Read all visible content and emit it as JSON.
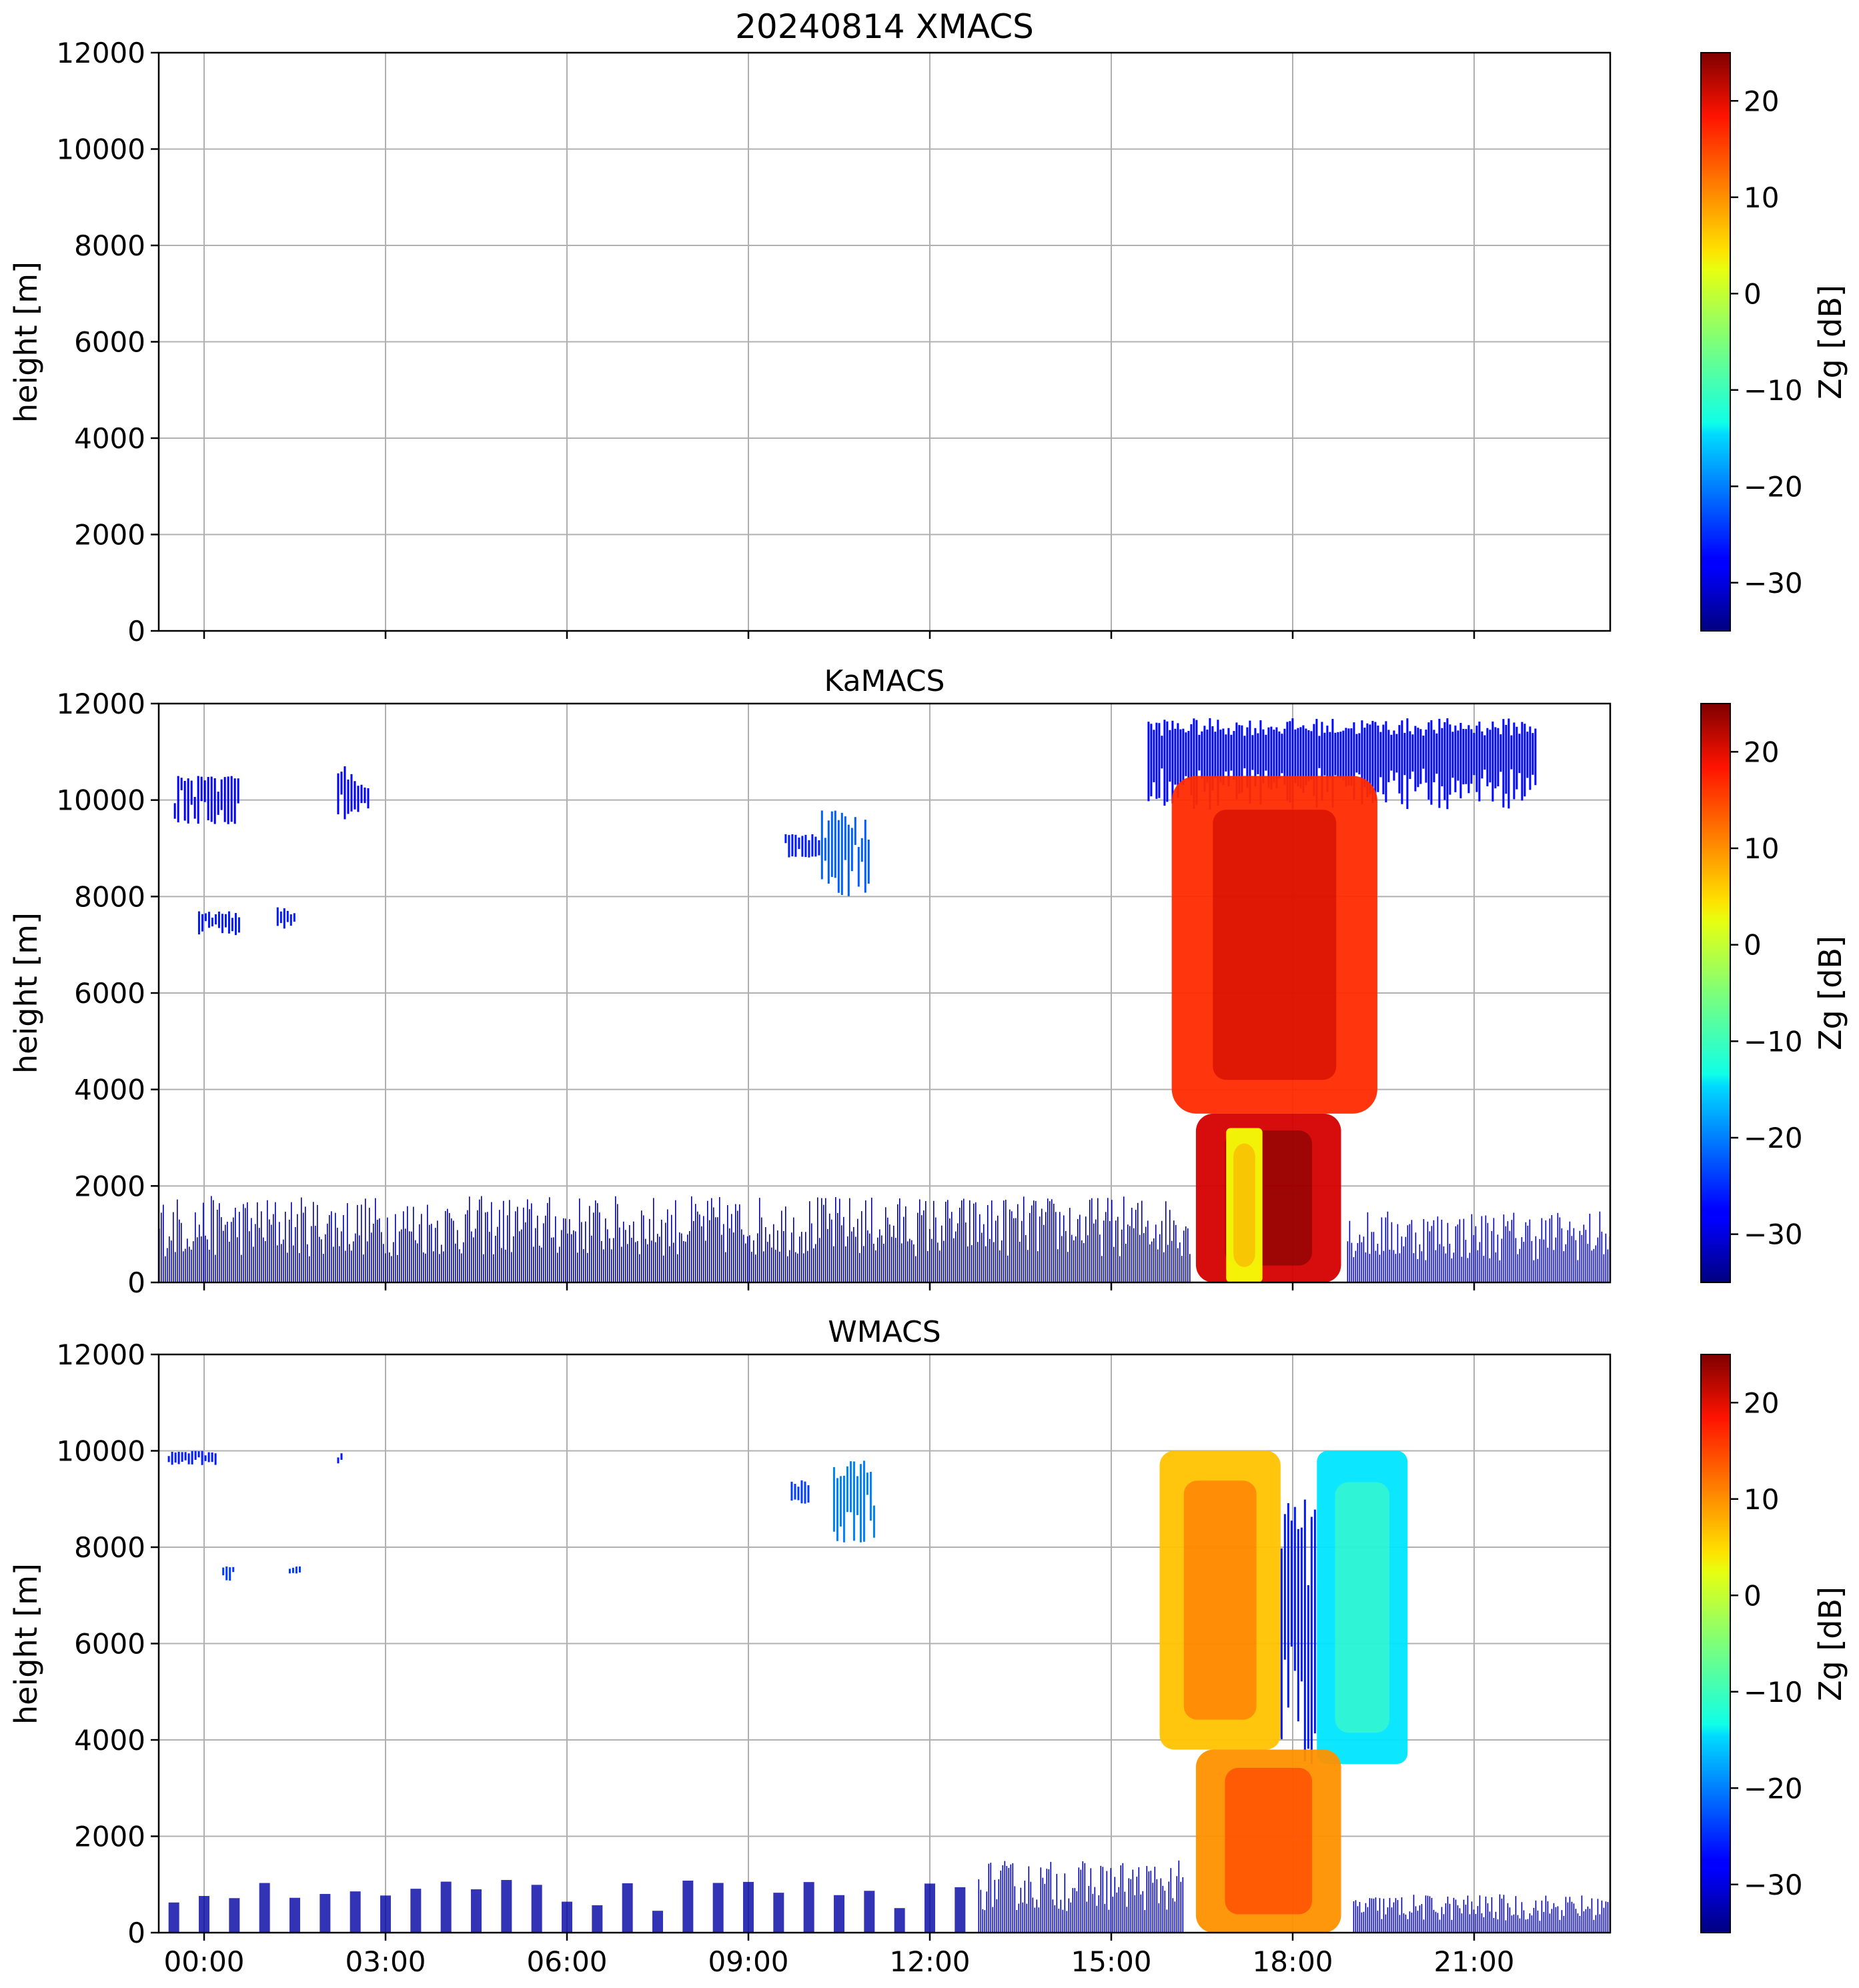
{
  "figure": {
    "x_tick_labels": [
      "00:00",
      "03:00",
      "06:00",
      "09:00",
      "12:00",
      "15:00",
      "18:00",
      "21:00"
    ]
  },
  "chart_data": [
    {
      "type": "heatmap",
      "title": "20240814 XMACS",
      "xlabel": "",
      "ylabel": "height [m]",
      "x_unit": "hours UTC",
      "xlim": [
        -0.75,
        23.25
      ],
      "ylim": [
        0,
        12000
      ],
      "y_ticks": [
        0,
        2000,
        4000,
        6000,
        8000,
        10000,
        12000
      ],
      "x_tick_labels_shown": false,
      "grid": true,
      "colorbar": {
        "label": "Zg [dB]",
        "range": [
          -35,
          25
        ],
        "ticks": [
          -30,
          -20,
          -10,
          0,
          10,
          20
        ],
        "colormap": "jet"
      },
      "echoes": []
    },
    {
      "type": "heatmap",
      "title": "KaMACS",
      "xlabel": "",
      "ylabel": "height [m]",
      "x_unit": "hours UTC",
      "xlim": [
        -0.75,
        23.25
      ],
      "ylim": [
        0,
        12000
      ],
      "y_ticks": [
        0,
        2000,
        4000,
        6000,
        8000,
        10000,
        12000
      ],
      "x_tick_labels_shown": false,
      "grid": true,
      "colorbar": {
        "label": "Zg [dB]",
        "range": [
          -35,
          25
        ],
        "ticks": [
          -30,
          -20,
          -10,
          0,
          10,
          20
        ],
        "colormap": "jet"
      },
      "echoes": [
        {
          "t0": -0.5,
          "t1": 0.6,
          "h0": 9500,
          "h1": 10500,
          "z": -28,
          "pattern": "streaks"
        },
        {
          "t0": 2.2,
          "t1": 2.7,
          "h0": 9600,
          "h1": 10700,
          "z": -28,
          "pattern": "streaks"
        },
        {
          "t0": -0.1,
          "t1": 0.6,
          "h0": 7200,
          "h1": 7700,
          "z": -26,
          "pattern": "streaks"
        },
        {
          "t0": 1.2,
          "t1": 1.5,
          "h0": 7300,
          "h1": 7800,
          "z": -26,
          "pattern": "streaks"
        },
        {
          "t0": 10.2,
          "t1": 11.0,
          "h0": 8000,
          "h1": 9800,
          "z": -22,
          "pattern": "streaks"
        },
        {
          "t0": 9.6,
          "t1": 10.2,
          "h0": 8800,
          "h1": 9300,
          "z": -26,
          "pattern": "streaks"
        },
        {
          "t0": -0.75,
          "t1": 16.3,
          "h0": 0,
          "h1": 1800,
          "z": -32,
          "pattern": "noise"
        },
        {
          "t0": 18.9,
          "t1": 23.25,
          "h0": 0,
          "h1": 1500,
          "z": -32,
          "pattern": "noise"
        },
        {
          "t0": 15.6,
          "t1": 22.0,
          "h0": 9800,
          "h1": 11700,
          "z": -27,
          "pattern": "anvil"
        },
        {
          "t0": 16.0,
          "t1": 19.4,
          "h0": 3500,
          "h1": 10500,
          "z": 15,
          "pattern": "core"
        },
        {
          "t0": 16.4,
          "t1": 18.8,
          "h0": 0,
          "h1": 3500,
          "z": 20,
          "pattern": "core"
        },
        {
          "t0": 16.9,
          "t1": 17.5,
          "h0": 0,
          "h1": 3200,
          "z": 2,
          "pattern": "core"
        }
      ]
    },
    {
      "type": "heatmap",
      "title": "WMACS",
      "xlabel": "",
      "ylabel": "height [m]",
      "x_unit": "hours UTC",
      "xlim": [
        -0.75,
        23.25
      ],
      "ylim": [
        0,
        12000
      ],
      "y_ticks": [
        0,
        2000,
        4000,
        6000,
        8000,
        10000,
        12000
      ],
      "x_tick_labels_shown": true,
      "grid": true,
      "colorbar": {
        "label": "Zg [dB]",
        "range": [
          -35,
          25
        ],
        "ticks": [
          -30,
          -20,
          -10,
          0,
          10,
          20
        ],
        "colormap": "jet"
      },
      "echoes": [
        {
          "t0": -0.6,
          "t1": 0.2,
          "h0": 9700,
          "h1": 10000,
          "z": -26,
          "pattern": "streaks"
        },
        {
          "t0": 2.2,
          "t1": 2.3,
          "h0": 9700,
          "h1": 10000,
          "z": -26,
          "pattern": "streaks"
        },
        {
          "t0": 0.3,
          "t1": 0.5,
          "h0": 7300,
          "h1": 7600,
          "z": -24,
          "pattern": "streaks"
        },
        {
          "t0": 1.4,
          "t1": 1.6,
          "h0": 7400,
          "h1": 7600,
          "z": -24,
          "pattern": "streaks"
        },
        {
          "t0": 9.7,
          "t1": 10.0,
          "h0": 8900,
          "h1": 9400,
          "z": -24,
          "pattern": "streaks"
        },
        {
          "t0": 10.4,
          "t1": 11.1,
          "h0": 8100,
          "h1": 9800,
          "z": -20,
          "pattern": "streaks"
        },
        {
          "t0": -0.75,
          "t1": 12.8,
          "h0": 0,
          "h1": 1100,
          "z": -33,
          "pattern": "bursts"
        },
        {
          "t0": 12.8,
          "t1": 16.2,
          "h0": 0,
          "h1": 1500,
          "z": -32,
          "pattern": "noise"
        },
        {
          "t0": 19.0,
          "t1": 23.25,
          "h0": 0,
          "h1": 800,
          "z": -33,
          "pattern": "noise"
        },
        {
          "t0": 15.8,
          "t1": 17.8,
          "h0": 3800,
          "h1": 10000,
          "z": 6,
          "pattern": "core"
        },
        {
          "t0": 18.4,
          "t1": 19.9,
          "h0": 3500,
          "h1": 10000,
          "z": -14,
          "pattern": "core"
        },
        {
          "t0": 17.8,
          "t1": 18.4,
          "h0": 3500,
          "h1": 9000,
          "z": -26,
          "pattern": "streaks"
        },
        {
          "t0": 16.4,
          "t1": 18.8,
          "h0": 0,
          "h1": 3800,
          "z": 9,
          "pattern": "core"
        }
      ]
    }
  ]
}
